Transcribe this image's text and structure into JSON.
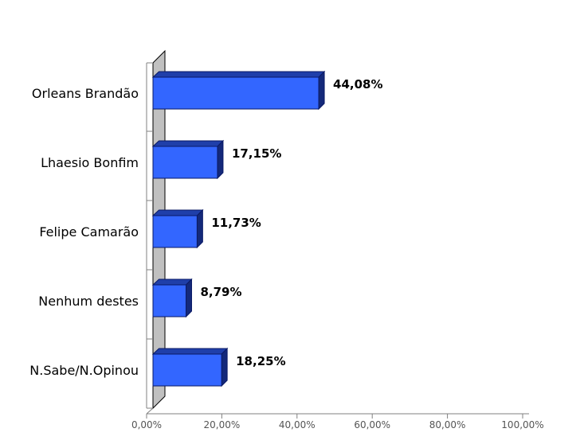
{
  "chart_data": {
    "type": "bar",
    "orientation": "horizontal",
    "categories": [
      "Orleans Brandão",
      "Lhaesio Bonfim",
      "Felipe Camarão",
      "Nenhum destes",
      "N.Sabe/N.Opinou"
    ],
    "values": [
      44.08,
      17.15,
      11.73,
      8.79,
      18.25
    ],
    "value_labels": [
      "44,08%",
      "17,15%",
      "11,73%",
      "8,79%",
      "18,25%"
    ],
    "xlim": [
      0,
      100
    ],
    "x_ticks": [
      0,
      20,
      40,
      60,
      80,
      100
    ],
    "x_tick_labels": [
      "0,00%",
      "20,00%",
      "40,00%",
      "60,00%",
      "80,00%",
      "100,00%"
    ],
    "title": "",
    "xlabel": "",
    "ylabel": "",
    "grid": false,
    "legend": "none",
    "style": "3d",
    "colors": {
      "bar_front": "#3366FF",
      "bar_top": "#1F3FAA",
      "bar_side": "#14297A",
      "bar_edge": "#0A1A66",
      "wall": "#C0C0C0"
    }
  }
}
